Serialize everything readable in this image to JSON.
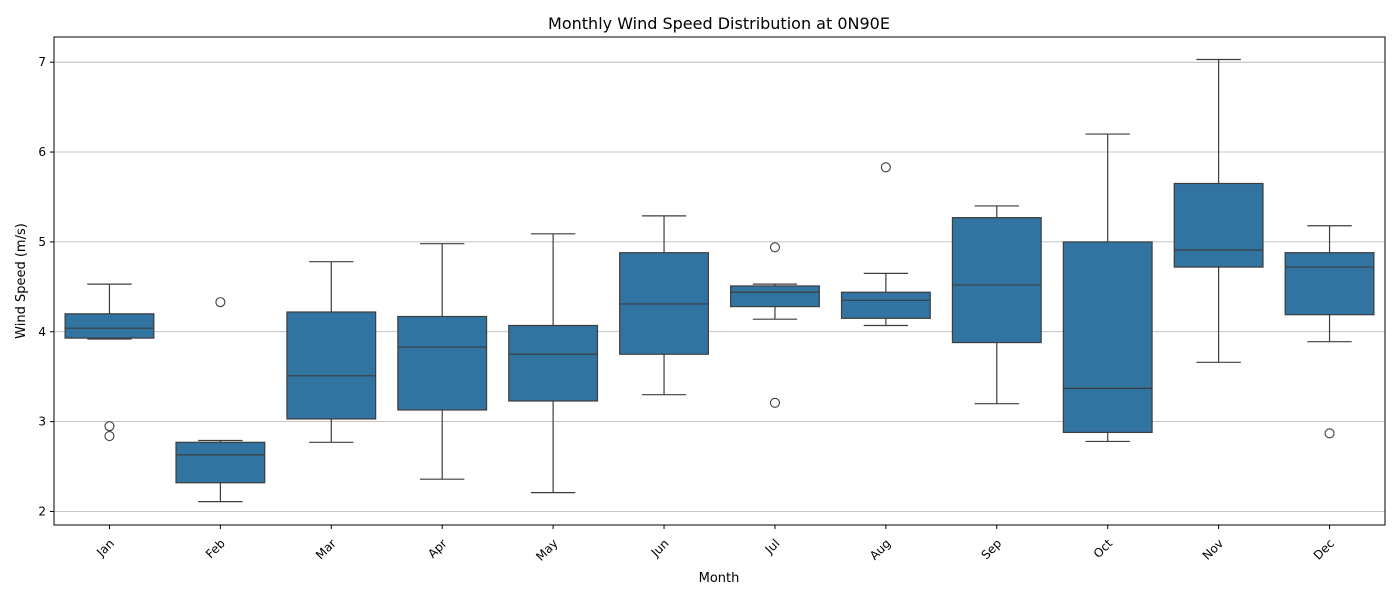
{
  "chart_data": {
    "type": "box",
    "title": "Monthly Wind Speed Distribution at 0N90E",
    "xlabel": "Month",
    "ylabel": "Wind Speed (m/s)",
    "ylim": [
      1.85,
      7.28
    ],
    "yticks": [
      2,
      3,
      4,
      5,
      6,
      7
    ],
    "grid": "y",
    "box_color": "#3274a1",
    "categories": [
      "Jan",
      "Feb",
      "Mar",
      "Apr",
      "May",
      "Jun",
      "Jul",
      "Aug",
      "Sep",
      "Oct",
      "Nov",
      "Dec"
    ],
    "boxes": [
      {
        "month": "Jan",
        "whisker_low": 3.92,
        "q1": 3.93,
        "median": 4.04,
        "q3": 4.2,
        "whisker_high": 4.53,
        "outliers": [
          2.95,
          2.84
        ]
      },
      {
        "month": "Feb",
        "whisker_low": 2.11,
        "q1": 2.32,
        "median": 2.63,
        "q3": 2.77,
        "whisker_high": 2.79,
        "outliers": [
          4.33
        ]
      },
      {
        "month": "Mar",
        "whisker_low": 2.77,
        "q1": 3.03,
        "median": 3.51,
        "q3": 4.22,
        "whisker_high": 4.78,
        "outliers": []
      },
      {
        "month": "Apr",
        "whisker_low": 2.36,
        "q1": 3.13,
        "median": 3.83,
        "q3": 4.17,
        "whisker_high": 4.98,
        "outliers": []
      },
      {
        "month": "May",
        "whisker_low": 2.21,
        "q1": 3.23,
        "median": 3.75,
        "q3": 4.07,
        "whisker_high": 5.09,
        "outliers": []
      },
      {
        "month": "Jun",
        "whisker_low": 3.3,
        "q1": 3.75,
        "median": 4.31,
        "q3": 4.88,
        "whisker_high": 5.29,
        "outliers": []
      },
      {
        "month": "Jul",
        "whisker_low": 4.14,
        "q1": 4.28,
        "median": 4.44,
        "q3": 4.51,
        "whisker_high": 4.53,
        "outliers": [
          4.94,
          3.21
        ]
      },
      {
        "month": "Aug",
        "whisker_low": 4.07,
        "q1": 4.15,
        "median": 4.35,
        "q3": 4.44,
        "whisker_high": 4.65,
        "outliers": [
          5.83
        ]
      },
      {
        "month": "Sep",
        "whisker_low": 3.2,
        "q1": 3.88,
        "median": 4.52,
        "q3": 5.27,
        "whisker_high": 5.4,
        "outliers": []
      },
      {
        "month": "Oct",
        "whisker_low": 2.78,
        "q1": 2.88,
        "median": 3.37,
        "q3": 5.0,
        "whisker_high": 6.2,
        "outliers": []
      },
      {
        "month": "Nov",
        "whisker_low": 3.66,
        "q1": 4.72,
        "median": 4.91,
        "q3": 5.65,
        "whisker_high": 7.03,
        "outliers": []
      },
      {
        "month": "Dec",
        "whisker_low": 3.89,
        "q1": 4.19,
        "median": 4.72,
        "q3": 4.88,
        "whisker_high": 5.18,
        "outliers": [
          2.87
        ]
      }
    ]
  }
}
